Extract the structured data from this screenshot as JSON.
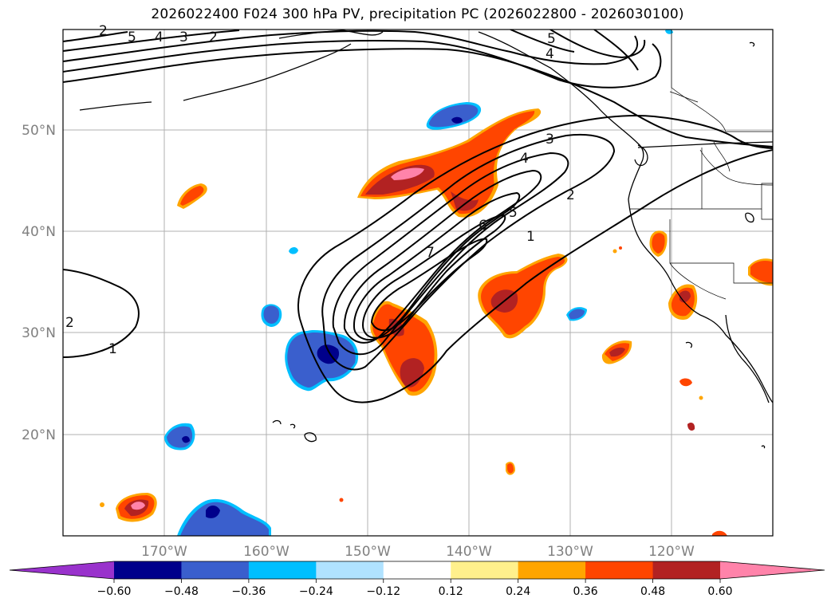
{
  "title": "2026022400 F024 300 hPa PV, precipitation PC (2026022800 - 2026030100)",
  "map": {
    "lat_labels": [
      "50°N",
      "40°N",
      "30°N",
      "20°N"
    ],
    "lon_labels": [
      "170°W",
      "160°W",
      "150°W",
      "140°W",
      "130°W",
      "120°W"
    ],
    "contour_labels": [
      "5",
      "4",
      "3",
      "2",
      "5",
      "4",
      "3",
      "2",
      "4",
      "7",
      "6",
      "5",
      "1",
      "2",
      "1",
      "2"
    ]
  },
  "colorbar": {
    "labels": [
      "−0.60",
      "−0.48",
      "−0.36",
      "−0.24",
      "−0.12",
      "0.12",
      "0.24",
      "0.36",
      "0.48",
      "0.60"
    ],
    "colors": [
      "#9932cc",
      "#00008b",
      "#3a5fcd",
      "#00bfff",
      "#b0e2ff",
      "#ffffff",
      "#fff08c",
      "#ffa500",
      "#ff4500",
      "#b22222",
      "#ff83aa"
    ]
  }
}
